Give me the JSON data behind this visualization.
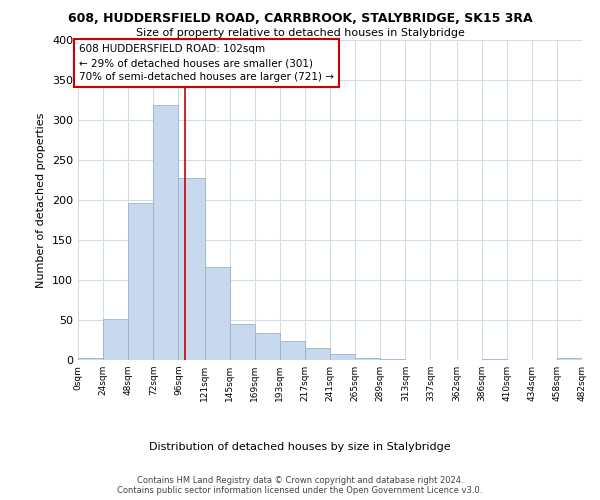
{
  "title": "608, HUDDERSFIELD ROAD, CARRBROOK, STALYBRIDGE, SK15 3RA",
  "subtitle": "Size of property relative to detached houses in Stalybridge",
  "xlabel": "Distribution of detached houses by size in Stalybridge",
  "ylabel": "Number of detached properties",
  "bar_color": "#c8d9ee",
  "bar_edge_color": "#9ab3d0",
  "vline_x": 102,
  "vline_color": "#cc0000",
  "annotation_lines": [
    "608 HUDDERSFIELD ROAD: 102sqm",
    "← 29% of detached houses are smaller (301)",
    "70% of semi-detached houses are larger (721) →"
  ],
  "bin_edges": [
    0,
    24,
    48,
    72,
    96,
    121,
    145,
    169,
    193,
    217,
    241,
    265,
    289,
    313,
    337,
    362,
    386,
    410,
    434,
    458,
    482
  ],
  "bin_heights": [
    2,
    51,
    196,
    319,
    228,
    116,
    45,
    34,
    24,
    15,
    7,
    3,
    1,
    0,
    0,
    0,
    1,
    0,
    0,
    2
  ],
  "ylim": [
    0,
    400
  ],
  "xlim": [
    0,
    482
  ],
  "yticks": [
    0,
    50,
    100,
    150,
    200,
    250,
    300,
    350,
    400
  ],
  "tick_labels": [
    "0sqm",
    "24sqm",
    "48sqm",
    "72sqm",
    "96sqm",
    "121sqm",
    "145sqm",
    "169sqm",
    "193sqm",
    "217sqm",
    "241sqm",
    "265sqm",
    "289sqm",
    "313sqm",
    "337sqm",
    "362sqm",
    "386sqm",
    "410sqm",
    "434sqm",
    "458sqm",
    "482sqm"
  ],
  "footer_lines": [
    "Contains HM Land Registry data © Crown copyright and database right 2024.",
    "Contains public sector information licensed under the Open Government Licence v3.0."
  ],
  "background_color": "#ffffff",
  "grid_color": "#d0dce8",
  "annotation_box_color": "#ffffff",
  "annotation_box_edge": "#cc0000"
}
